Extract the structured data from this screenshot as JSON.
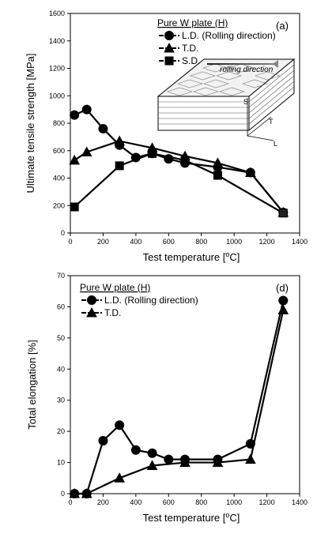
{
  "chart_data": [
    {
      "type": "line",
      "panel_label": "(a)",
      "legend_title": "Pure W plate (H)",
      "xlabel": "Test temperature [",
      "xlabel_unit": "oC]",
      "ylabel": "Ultimate tensile strength [MPa]",
      "xlim": [
        0,
        1400
      ],
      "ylim": [
        0,
        1600
      ],
      "xticks": [
        0,
        200,
        400,
        600,
        800,
        1000,
        1200,
        1400
      ],
      "yticks": [
        0,
        200,
        400,
        600,
        800,
        1000,
        1200,
        1400,
        1600
      ],
      "legend_position": "top-right",
      "series": [
        {
          "name": "L.D. (Rolling direction)",
          "marker": "circle",
          "x": [
            25,
            100,
            200,
            300,
            400,
            500,
            600,
            700,
            900,
            1100,
            1300
          ],
          "y": [
            860,
            900,
            760,
            640,
            550,
            580,
            540,
            510,
            480,
            440,
            150
          ]
        },
        {
          "name": "T.D.",
          "marker": "triangle",
          "x": [
            25,
            100,
            300,
            500,
            700,
            900,
            1100,
            1300
          ],
          "y": [
            530,
            590,
            670,
            620,
            560,
            510,
            440,
            150
          ]
        },
        {
          "name": "S.D.",
          "marker": "square",
          "x": [
            25,
            300,
            500,
            700,
            900,
            1300
          ],
          "y": [
            190,
            490,
            580,
            530,
            420,
            145
          ]
        }
      ],
      "inset_labels": {
        "rolling": "rolling direction",
        "s": "S",
        "t": "T",
        "l": "L"
      }
    },
    {
      "type": "line",
      "panel_label": "(d)",
      "legend_title": "Pure W plate (H)",
      "xlabel": "Test temperature [",
      "xlabel_unit": "oC]",
      "ylabel": "Total elongation [%]",
      "xlim": [
        0,
        1400
      ],
      "ylim": [
        0,
        70
      ],
      "xticks": [
        0,
        200,
        400,
        600,
        800,
        1000,
        1200,
        1400
      ],
      "yticks": [
        0,
        10,
        20,
        30,
        40,
        50,
        60,
        70
      ],
      "legend_position": "top-left",
      "series": [
        {
          "name": "L.D. (Rolling direction)",
          "marker": "circle",
          "x": [
            25,
            100,
            200,
            300,
            400,
            500,
            600,
            700,
            900,
            1100,
            1300
          ],
          "y": [
            0,
            0,
            17,
            22,
            14,
            13,
            11,
            11,
            11,
            16,
            62
          ]
        },
        {
          "name": "T.D.",
          "marker": "triangle",
          "x": [
            25,
            100,
            300,
            500,
            700,
            900,
            1100,
            1300
          ],
          "y": [
            0,
            0,
            5,
            9,
            10,
            10,
            11,
            59
          ]
        }
      ]
    }
  ]
}
